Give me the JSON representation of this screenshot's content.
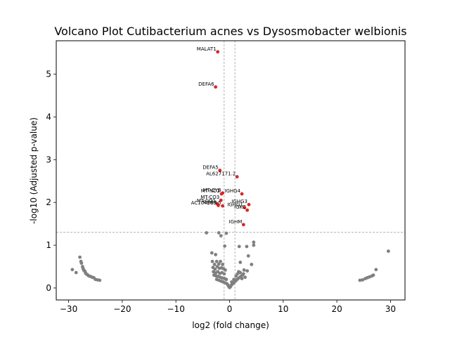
{
  "colors": {
    "background": "#ffffff",
    "significant": "#d62728",
    "not_significant": "#808080",
    "threshold_line": "#808080",
    "axis": "#000000"
  },
  "chart_data": {
    "type": "scatter",
    "title": "Volcano Plot Cutibacterium acnes vs Dysosmobacter welbionis",
    "xlabel": "log2 (fold change)",
    "ylabel": "-log10 (Adjusted p-value)",
    "xlim": [
      -32.3,
      32.7
    ],
    "ylim": [
      -0.28,
      5.78
    ],
    "xticks": [
      -30,
      -20,
      -10,
      0,
      10,
      20,
      30
    ],
    "yticks": [
      0,
      1,
      2,
      3,
      4,
      5
    ],
    "xtick_labels": [
      "−30",
      "−20",
      "−10",
      "0",
      "10",
      "20",
      "30"
    ],
    "ytick_labels": [
      "0",
      "1",
      "2",
      "3",
      "4",
      "5"
    ],
    "grid": false,
    "legend": "none",
    "thresholds": {
      "log2fc": [
        -1,
        1
      ],
      "neg_log10_padj": 1.3
    },
    "significant_genes": [
      {
        "label": "MALAT1",
        "x": -2.2,
        "y": 5.52
      },
      {
        "label": "DEFA6",
        "x": -2.6,
        "y": 4.7
      },
      {
        "label": "DEFA5",
        "x": -1.8,
        "y": 2.75
      },
      {
        "label": "AL627171.2",
        "x": 1.4,
        "y": 2.6
      },
      {
        "label": "IGHG4",
        "x": 2.3,
        "y": 2.2
      },
      {
        "label": "MT-CYB",
        "x": -1.3,
        "y": 2.22
      },
      {
        "label": "MT-ND2",
        "x": -1.5,
        "y": 2.2
      },
      {
        "label": "MT-CO3",
        "x": -1.6,
        "y": 2.05
      },
      {
        "label": "MT-CO1",
        "x": -2.3,
        "y": 1.97
      },
      {
        "label": "MEG3",
        "x": -2.1,
        "y": 1.93
      },
      {
        "label": "AC104389.5",
        "x": -1.3,
        "y": 1.92
      },
      {
        "label": "IGHG3",
        "x": 3.6,
        "y": 1.95
      },
      {
        "label": "IGHG1",
        "x": 2.8,
        "y": 1.88
      },
      {
        "label": "IGKC",
        "x": 3.3,
        "y": 1.82
      },
      {
        "label": "IGHM",
        "x": 2.6,
        "y": 1.48
      }
    ],
    "nonsignificant_points": [
      {
        "x": -29.3,
        "y": 0.43
      },
      {
        "x": -28.6,
        "y": 0.36
      },
      {
        "x": -27.9,
        "y": 0.72
      },
      {
        "x": -27.7,
        "y": 0.62
      },
      {
        "x": -27.6,
        "y": 0.58
      },
      {
        "x": -27.4,
        "y": 0.5
      },
      {
        "x": -27.3,
        "y": 0.46
      },
      {
        "x": -27.2,
        "y": 0.42
      },
      {
        "x": -27.0,
        "y": 0.4
      },
      {
        "x": -26.9,
        "y": 0.37
      },
      {
        "x": -26.8,
        "y": 0.34
      },
      {
        "x": -26.6,
        "y": 0.32
      },
      {
        "x": -26.4,
        "y": 0.3
      },
      {
        "x": -26.2,
        "y": 0.28
      },
      {
        "x": -25.9,
        "y": 0.27
      },
      {
        "x": -25.6,
        "y": 0.25
      },
      {
        "x": -25.3,
        "y": 0.24
      },
      {
        "x": -25.0,
        "y": 0.2
      },
      {
        "x": -24.6,
        "y": 0.19
      },
      {
        "x": -24.2,
        "y": 0.18
      },
      {
        "x": 24.3,
        "y": 0.18
      },
      {
        "x": 24.8,
        "y": 0.19
      },
      {
        "x": 25.3,
        "y": 0.22
      },
      {
        "x": 25.7,
        "y": 0.24
      },
      {
        "x": 26.1,
        "y": 0.26
      },
      {
        "x": 26.5,
        "y": 0.28
      },
      {
        "x": 26.8,
        "y": 0.3
      },
      {
        "x": 27.3,
        "y": 0.43
      },
      {
        "x": 29.6,
        "y": 0.86
      },
      {
        "x": -4.3,
        "y": 1.29
      },
      {
        "x": -2.0,
        "y": 1.29
      },
      {
        "x": -0.6,
        "y": 1.28
      },
      {
        "x": -1.6,
        "y": 1.22
      },
      {
        "x": -0.9,
        "y": 0.98
      },
      {
        "x": 1.8,
        "y": 0.97
      },
      {
        "x": 3.2,
        "y": 0.97
      },
      {
        "x": 4.5,
        "y": 1.07
      },
      {
        "x": 4.5,
        "y": 1.0
      },
      {
        "x": -3.3,
        "y": 0.82
      },
      {
        "x": -2.6,
        "y": 0.78
      },
      {
        "x": 3.5,
        "y": 0.75
      },
      {
        "x": 2.0,
        "y": 0.6
      },
      {
        "x": 4.1,
        "y": 0.55
      },
      {
        "x": 2.7,
        "y": 0.42
      },
      {
        "x": 3.3,
        "y": 0.4
      },
      {
        "x": -3.2,
        "y": 0.62
      },
      {
        "x": -2.8,
        "y": 0.55
      },
      {
        "x": -2.4,
        "y": 0.62
      },
      {
        "x": -2.0,
        "y": 0.56
      },
      {
        "x": -1.7,
        "y": 0.62
      },
      {
        "x": -1.3,
        "y": 0.55
      },
      {
        "x": -3.1,
        "y": 0.48
      },
      {
        "x": -2.7,
        "y": 0.44
      },
      {
        "x": -2.3,
        "y": 0.5
      },
      {
        "x": -1.9,
        "y": 0.46
      },
      {
        "x": -1.5,
        "y": 0.47
      },
      {
        "x": -1.1,
        "y": 0.45
      },
      {
        "x": -0.8,
        "y": 0.42
      },
      {
        "x": -3.0,
        "y": 0.38
      },
      {
        "x": -2.6,
        "y": 0.35
      },
      {
        "x": -2.2,
        "y": 0.38
      },
      {
        "x": -1.8,
        "y": 0.34
      },
      {
        "x": -1.4,
        "y": 0.36
      },
      {
        "x": -1.0,
        "y": 0.33
      },
      {
        "x": -2.9,
        "y": 0.3
      },
      {
        "x": -2.5,
        "y": 0.28
      },
      {
        "x": -2.1,
        "y": 0.27
      },
      {
        "x": -1.7,
        "y": 0.25
      },
      {
        "x": -1.3,
        "y": 0.23
      },
      {
        "x": -0.9,
        "y": 0.22
      },
      {
        "x": -0.6,
        "y": 0.2
      },
      {
        "x": -2.4,
        "y": 0.2
      },
      {
        "x": -2.0,
        "y": 0.18
      },
      {
        "x": -1.6,
        "y": 0.16
      },
      {
        "x": -1.2,
        "y": 0.14
      },
      {
        "x": -0.8,
        "y": 0.12
      },
      {
        "x": -0.5,
        "y": 0.1
      },
      {
        "x": -0.3,
        "y": 0.07
      },
      {
        "x": -0.2,
        "y": 0.05
      },
      {
        "x": -0.1,
        "y": 0.03
      },
      {
        "x": 0.0,
        "y": 0.01
      },
      {
        "x": 0.1,
        "y": 0.02
      },
      {
        "x": 0.2,
        "y": 0.04
      },
      {
        "x": 0.3,
        "y": 0.06
      },
      {
        "x": 0.5,
        "y": 0.09
      },
      {
        "x": 0.7,
        "y": 0.11
      },
      {
        "x": 0.9,
        "y": 0.14
      },
      {
        "x": 1.1,
        "y": 0.16
      },
      {
        "x": 1.3,
        "y": 0.19
      },
      {
        "x": 1.5,
        "y": 0.21
      },
      {
        "x": 1.8,
        "y": 0.24
      },
      {
        "x": 2.1,
        "y": 0.27
      },
      {
        "x": 2.4,
        "y": 0.3
      },
      {
        "x": 1.2,
        "y": 0.28
      },
      {
        "x": 1.5,
        "y": 0.33
      },
      {
        "x": 1.7,
        "y": 0.38
      },
      {
        "x": 2.0,
        "y": 0.36
      },
      {
        "x": 2.3,
        "y": 0.22
      },
      {
        "x": 2.6,
        "y": 0.33
      },
      {
        "x": 2.9,
        "y": 0.25
      },
      {
        "x": 0.8,
        "y": 0.2
      },
      {
        "x": 0.4,
        "y": 0.14
      }
    ]
  }
}
